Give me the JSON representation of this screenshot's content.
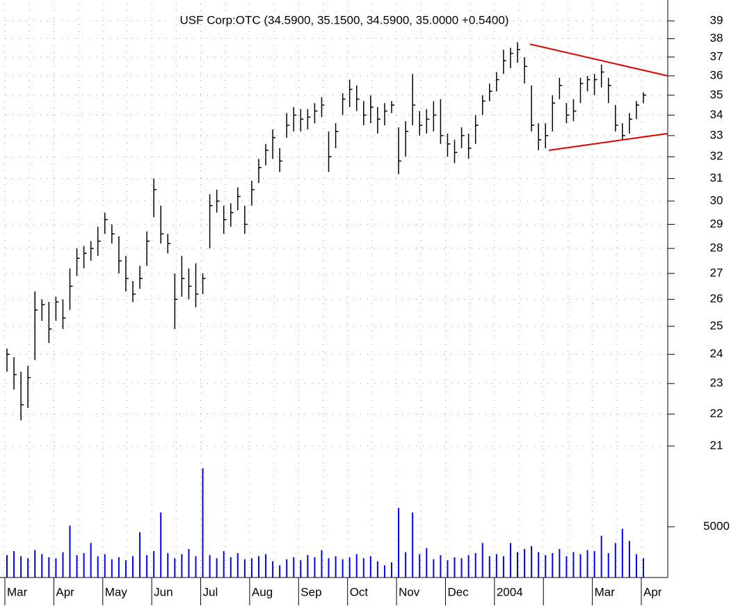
{
  "chart_data": {
    "type": "ohlc",
    "subtitle": "USF Corp:OTC (34.5900, 35.1500, 34.5900, 35.0000 +0.5400)",
    "log_scale": true,
    "grid": true,
    "bar_color": "#000000",
    "volume_color": "#0000ff",
    "ylim": [
      20.6,
      40
    ],
    "yticks": [
      21,
      22,
      23,
      24,
      25,
      26,
      27,
      28,
      29,
      30,
      31,
      32,
      33,
      34,
      35,
      36,
      37,
      38,
      39
    ],
    "volume_lim": [
      0,
      11300
    ],
    "volume_ticks": [
      5000
    ],
    "trendlines": [
      {
        "color": "#e00000",
        "start": 37.7,
        "end": 36.0
      },
      {
        "color": "#e00000",
        "start": 32.3,
        "end": 33.1
      }
    ],
    "months": [
      {
        "label": "Mar",
        "high": [
          24.2,
          23.9,
          23.4,
          23.6,
          26.3,
          26.0,
          25.9
        ],
        "low": [
          23.4,
          22.8,
          21.8,
          22.2,
          23.8,
          25.2,
          24.4
        ],
        "close": [
          24.0,
          23.3,
          22.3,
          23.2,
          25.6,
          25.8,
          24.9
        ],
        "volume": [
          2200,
          2600,
          2100,
          1900,
          2700,
          2300,
          2000
        ]
      },
      {
        "label": "Apr",
        "high": [
          26.1,
          26.0,
          27.2,
          28.0,
          28.1,
          28.3,
          28.9
        ],
        "low": [
          25.2,
          24.9,
          25.6,
          26.9,
          27.2,
          27.5,
          27.7
        ],
        "close": [
          25.9,
          25.3,
          26.5,
          27.6,
          27.8,
          28.0,
          28.3
        ],
        "volume": [
          1900,
          2500,
          5100,
          2200,
          2400,
          3400,
          2100
        ]
      },
      {
        "label": "May",
        "high": [
          29.5,
          29.0,
          28.5,
          27.7,
          26.7,
          27.3,
          28.7
        ],
        "low": [
          28.6,
          28.2,
          27.0,
          26.3,
          25.9,
          26.4,
          27.3
        ],
        "close": [
          29.2,
          28.6,
          27.5,
          26.8,
          26.2,
          26.8,
          28.3
        ],
        "volume": [
          2300,
          1800,
          2000,
          1700,
          2100,
          4450,
          2200
        ]
      },
      {
        "label": "Jun",
        "high": [
          31.0,
          29.8,
          28.6,
          27.0,
          27.7,
          27.2,
          27.4
        ],
        "low": [
          29.3,
          28.2,
          27.8,
          24.9,
          26.1,
          26.0,
          25.7
        ],
        "close": [
          30.5,
          28.6,
          28.2,
          26.0,
          26.8,
          26.5,
          26.2
        ],
        "volume": [
          2600,
          6400,
          2400,
          1900,
          2300,
          2800,
          2100
        ]
      },
      {
        "label": "Jul",
        "high": [
          27.0,
          30.3,
          30.5,
          29.8,
          29.9,
          30.6,
          29.8
        ],
        "low": [
          26.2,
          28.0,
          29.5,
          28.6,
          28.9,
          29.6,
          28.6
        ],
        "close": [
          26.8,
          29.8,
          30.0,
          29.2,
          29.5,
          30.2,
          29.0
        ],
        "volume": [
          10750,
          2200,
          1900,
          2600,
          2000,
          2400,
          1800
        ]
      },
      {
        "label": "Aug",
        "high": [
          30.9,
          31.9,
          32.6,
          33.3,
          32.4,
          34.1,
          34.4
        ],
        "low": [
          29.8,
          30.8,
          31.6,
          31.9,
          31.3,
          32.9,
          33.2
        ],
        "close": [
          30.5,
          31.5,
          32.3,
          32.9,
          31.8,
          33.5,
          34.0
        ],
        "volume": [
          1900,
          2100,
          2300,
          1600,
          1200,
          1800,
          2000
        ]
      },
      {
        "label": "Sep",
        "high": [
          34.3,
          34.3,
          34.6,
          34.9,
          33.2,
          33.6,
          35.1
        ],
        "low": [
          33.2,
          33.3,
          33.6,
          33.9,
          31.3,
          32.4,
          34.0
        ],
        "close": [
          33.8,
          33.9,
          34.2,
          34.5,
          32.0,
          33.2,
          34.8
        ],
        "volume": [
          1700,
          2200,
          2000,
          2700,
          1900,
          2100,
          1800
        ]
      },
      {
        "label": "Oct",
        "high": [
          35.8,
          35.5,
          34.7,
          35.0,
          34.4,
          34.6,
          34.7
        ],
        "low": [
          34.4,
          34.2,
          33.5,
          33.6,
          33.1,
          33.5,
          34.1
        ],
        "close": [
          35.3,
          34.8,
          34.0,
          34.4,
          33.8,
          34.2,
          34.5
        ],
        "volume": [
          2000,
          2300,
          1900,
          2100,
          1600,
          1200,
          1500
        ]
      },
      {
        "label": "Nov",
        "high": [
          33.4,
          33.7,
          36.1,
          34.2,
          34.3,
          34.7,
          34.8
        ],
        "low": [
          31.2,
          32.0,
          33.5,
          33.0,
          33.1,
          33.2,
          32.6
        ],
        "close": [
          31.8,
          33.2,
          34.5,
          33.5,
          33.8,
          34.0,
          33.0
        ],
        "volume": [
          6850,
          2500,
          6400,
          2300,
          2900,
          1800,
          2200
        ]
      },
      {
        "label": "Dec",
        "high": [
          33.1,
          32.8,
          33.4,
          33.1,
          34.0,
          35.0,
          35.6
        ],
        "low": [
          32.0,
          31.7,
          32.4,
          31.9,
          32.6,
          34.0,
          34.7
        ],
        "close": [
          32.6,
          32.2,
          33.0,
          32.4,
          33.5,
          34.7,
          35.2
        ],
        "volume": [
          1700,
          2000,
          1900,
          2200,
          2400,
          3400,
          2100
        ]
      },
      {
        "label": "2004",
        "high": [
          36.2,
          37.4,
          37.5,
          37.8,
          37.0,
          35.5,
          33.6
        ],
        "low": [
          35.2,
          36.1,
          36.4,
          36.7,
          35.6,
          33.2,
          32.3
        ],
        "close": [
          35.8,
          36.8,
          37.2,
          37.4,
          36.5,
          33.5,
          32.8
        ],
        "volume": [
          2300,
          2100,
          3400,
          2500,
          2800,
          3100,
          2500
        ]
      },
      {
        "label": null,
        "high": [
          33.6,
          35.0,
          35.9,
          34.6,
          34.8,
          35.9,
          36.0
        ],
        "low": [
          32.4,
          33.2,
          34.8,
          33.6,
          33.7,
          34.6,
          35.2
        ],
        "close": [
          33.0,
          34.6,
          35.5,
          34.0,
          34.2,
          35.6,
          35.8
        ],
        "volume": [
          2200,
          2400,
          2800,
          2100,
          2500,
          2300,
          2700
        ]
      },
      {
        "label": "Mar",
        "high": [
          36.1,
          36.6,
          35.9,
          34.5,
          33.6,
          34.1,
          34.7
        ],
        "low": [
          35.0,
          35.4,
          34.6,
          33.2,
          32.8,
          33.1,
          33.8
        ],
        "close": [
          35.8,
          36.2,
          35.5,
          33.5,
          33.0,
          33.8,
          34.5
        ],
        "volume": [
          2600,
          4100,
          2400,
          3400,
          4800,
          3600,
          2300
        ]
      },
      {
        "label": "Apr",
        "high": [
          35.15
        ],
        "low": [
          34.59
        ],
        "close": [
          35.0
        ],
        "volume": [
          1900
        ]
      }
    ]
  }
}
